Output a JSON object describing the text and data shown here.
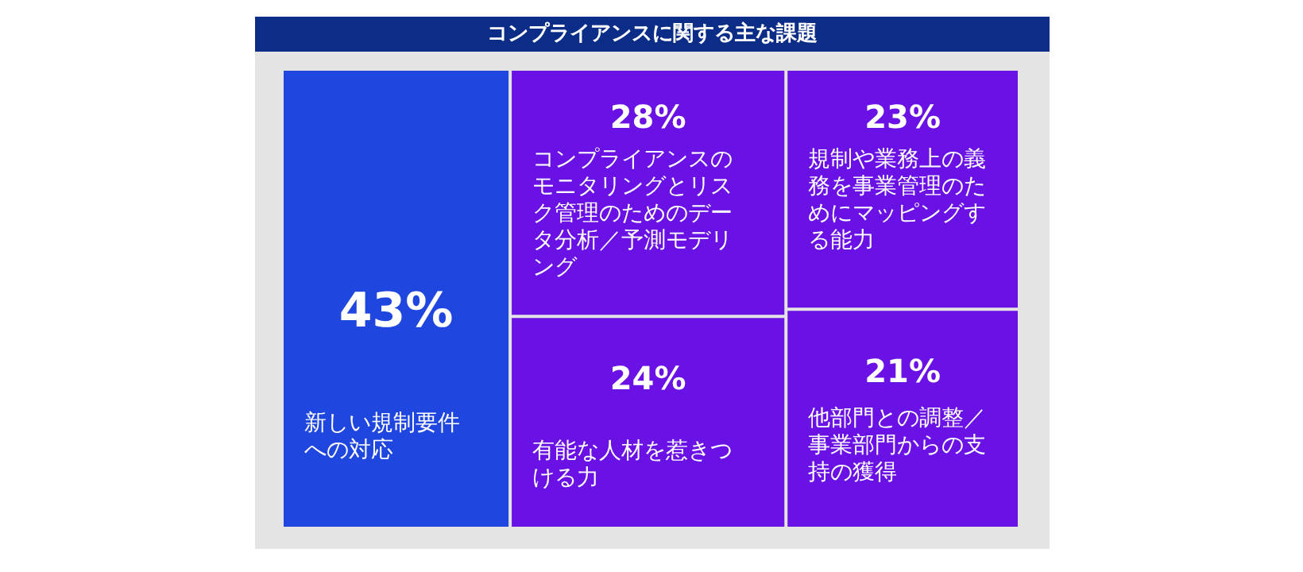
{
  "chart_data": {
    "type": "other",
    "title": "コンプライアンスに関する主な課題",
    "categories": [
      "新しい規制要件への対応",
      "コンプライアンスのモニタリングとリスク管理のためのデータ分析／予測モデリング",
      "規制や業務上の義務を事業管理のためにマッピングする能力",
      "有能な人材を惹きつける力",
      "他部門との調整／事業部門からの支持の獲得"
    ],
    "values": [
      43,
      28,
      23,
      24,
      21
    ],
    "value_labels": [
      "43%",
      "28%",
      "23%",
      "24%",
      "21%"
    ],
    "colors": [
      "#1f47e0",
      "#6a12e6",
      "#6a12e6",
      "#6a12e6",
      "#6a12e6"
    ]
  }
}
